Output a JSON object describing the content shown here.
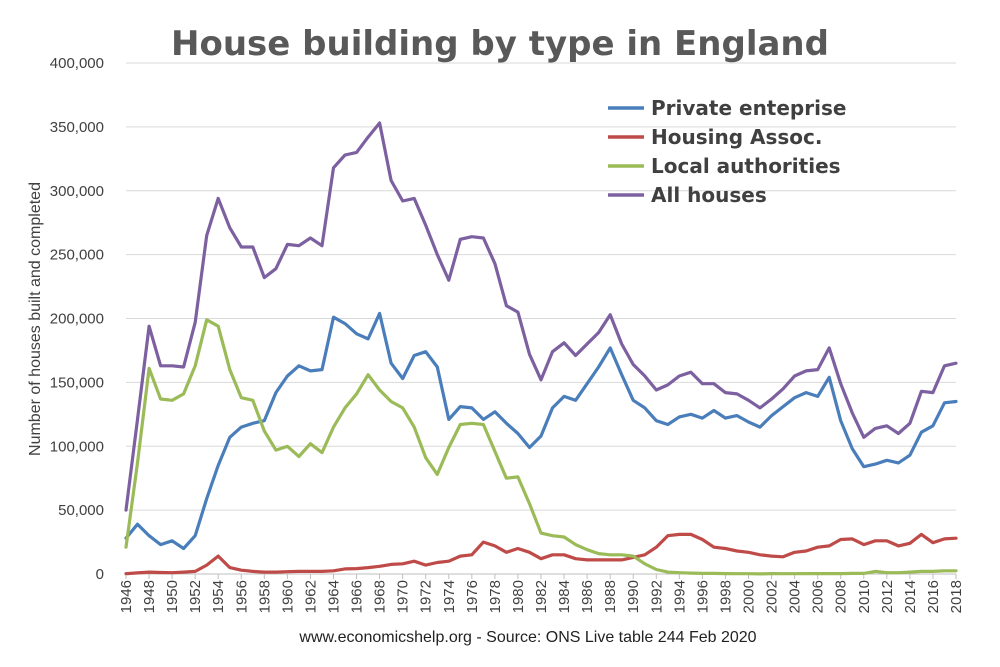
{
  "chart_data": {
    "type": "line",
    "title": "House building by type in England",
    "xlabel": "",
    "ylabel": "Number of houses built and completed",
    "ylim": [
      0,
      400000
    ],
    "y_ticks": [
      "0",
      "50,000",
      "100,000",
      "150,000",
      "200,000",
      "250,000",
      "300,000",
      "350,000",
      "400,000"
    ],
    "y_tick_values": [
      0,
      50000,
      100000,
      150000,
      200000,
      250000,
      300000,
      350000,
      400000
    ],
    "x_range": [
      1946,
      2018
    ],
    "x_tick_labels": [
      "1946",
      "1948",
      "1950",
      "1952",
      "1954",
      "1956",
      "1958",
      "1960",
      "1962",
      "1964",
      "1966",
      "1968",
      "1970",
      "1972",
      "1974",
      "1976",
      "1978",
      "1980",
      "1982",
      "1984",
      "1986",
      "1988",
      "1990",
      "1992",
      "1994",
      "1996",
      "1998",
      "2000",
      "2002",
      "2004",
      "2006",
      "2008",
      "2010",
      "2012",
      "2014",
      "2016",
      "2018"
    ],
    "grid": "horizontal",
    "legend_position": "top-right",
    "source_note": "www.economicshelp.org  - Source: ONS Live table 244 Feb 2020",
    "x": [
      1946,
      1947,
      1948,
      1949,
      1950,
      1951,
      1952,
      1953,
      1954,
      1955,
      1956,
      1957,
      1958,
      1959,
      1960,
      1961,
      1962,
      1963,
      1964,
      1965,
      1966,
      1967,
      1968,
      1969,
      1970,
      1971,
      1972,
      1973,
      1974,
      1975,
      1976,
      1977,
      1978,
      1979,
      1980,
      1981,
      1982,
      1983,
      1984,
      1985,
      1986,
      1987,
      1988,
      1989,
      1990,
      1991,
      1992,
      1993,
      1994,
      1995,
      1996,
      1997,
      1998,
      1999,
      2000,
      2001,
      2002,
      2003,
      2004,
      2005,
      2006,
      2007,
      2008,
      2009,
      2010,
      2011,
      2012,
      2013,
      2014,
      2015,
      2016,
      2017,
      2018
    ],
    "series": [
      {
        "name": "Private enteprise",
        "color": "#4a7ebb",
        "values": [
          28000,
          39000,
          30000,
          23000,
          26000,
          20000,
          30000,
          59000,
          85000,
          107000,
          115000,
          118000,
          120000,
          142000,
          155000,
          163000,
          159000,
          160000,
          201000,
          196000,
          188000,
          184000,
          204000,
          165000,
          153000,
          171000,
          174000,
          162000,
          121000,
          131000,
          130000,
          121000,
          127000,
          118000,
          110000,
          99000,
          108000,
          130000,
          139000,
          136000,
          149000,
          162000,
          177000,
          156000,
          136000,
          130000,
          120000,
          117000,
          123000,
          125000,
          122000,
          128000,
          122000,
          124000,
          119000,
          115000,
          124000,
          131000,
          138000,
          142000,
          139000,
          154000,
          120000,
          98000,
          84000,
          86000,
          89000,
          87000,
          93000,
          111000,
          116000,
          134000,
          135000
        ]
      },
      {
        "name": "Housing Assoc.",
        "color": "#be4b48",
        "values": [
          200,
          900,
          1500,
          1200,
          1000,
          1500,
          2000,
          7000,
          14000,
          5000,
          3000,
          2000,
          1500,
          1500,
          1800,
          2000,
          2000,
          2000,
          2500,
          4000,
          4200,
          5000,
          6000,
          7500,
          8000,
          10000,
          7000,
          9000,
          10000,
          14000,
          15000,
          25000,
          22000,
          17000,
          20000,
          17000,
          12000,
          15000,
          15000,
          12000,
          11000,
          11000,
          11000,
          11000,
          13000,
          15000,
          21000,
          30000,
          31000,
          31000,
          27000,
          21000,
          20000,
          18000,
          17000,
          15000,
          14000,
          13500,
          17000,
          18000,
          21000,
          22000,
          27000,
          27500,
          23000,
          26000,
          26000,
          22000,
          24000,
          31000,
          24500,
          27500,
          28000
        ]
      },
      {
        "name": "Local authorities",
        "color": "#9bbb59",
        "values": [
          21000,
          87000,
          161000,
          137000,
          136000,
          141000,
          163000,
          199000,
          194000,
          160000,
          138000,
          136000,
          112000,
          97000,
          100000,
          92000,
          102000,
          95000,
          115000,
          130000,
          141000,
          156000,
          144000,
          135000,
          130000,
          115000,
          91000,
          78000,
          99000,
          117000,
          118000,
          117000,
          96000,
          75000,
          76000,
          55000,
          32000,
          30000,
          29000,
          23000,
          19000,
          16000,
          15000,
          15000,
          14000,
          8000,
          3500,
          1500,
          1000,
          700,
          500,
          500,
          300,
          200,
          200,
          100,
          300,
          200,
          200,
          300,
          300,
          300,
          300,
          500,
          500,
          2000,
          1000,
          1000,
          1500,
          2000,
          2000,
          2500,
          2500
        ]
      },
      {
        "name": "All houses",
        "color": "#7d60a0",
        "values": [
          50000,
          121000,
          194000,
          163000,
          163000,
          162000,
          197000,
          265000,
          294000,
          271000,
          256000,
          256000,
          232000,
          239000,
          258000,
          257000,
          263000,
          257000,
          318000,
          328000,
          330000,
          342000,
          353000,
          308000,
          292000,
          294000,
          273000,
          250000,
          230000,
          262000,
          264000,
          263000,
          243000,
          210000,
          205000,
          172000,
          152000,
          174000,
          181000,
          171000,
          180000,
          189000,
          203000,
          180000,
          164000,
          155000,
          144000,
          148000,
          155000,
          158000,
          149000,
          149000,
          142000,
          141000,
          136000,
          130000,
          137000,
          145000,
          155000,
          159000,
          160000,
          177000,
          149000,
          126000,
          107000,
          114000,
          116000,
          110000,
          118000,
          143000,
          142000,
          163000,
          165000
        ]
      }
    ]
  }
}
